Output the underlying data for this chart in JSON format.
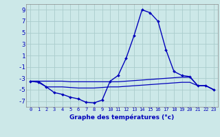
{
  "title": "Graphe des températures (°c)",
  "background_color": "#cce8e8",
  "grid_color": "#aacccc",
  "line_color": "#0000bb",
  "x_labels": [
    "0",
    "1",
    "2",
    "3",
    "4",
    "5",
    "6",
    "7",
    "8",
    "9",
    "10",
    "11",
    "12",
    "13",
    "14",
    "15",
    "16",
    "17",
    "18",
    "19",
    "20",
    "21",
    "22",
    "23"
  ],
  "ylim": [
    -8,
    10
  ],
  "yticks": [
    -7,
    -5,
    -3,
    -1,
    1,
    3,
    5,
    7,
    9
  ],
  "xlim": [
    -0.5,
    23.5
  ],
  "line1_x": [
    0,
    1,
    2,
    3,
    4,
    5,
    6,
    7,
    8,
    9,
    10,
    11,
    12,
    13,
    14,
    15,
    16,
    17,
    18,
    19,
    20,
    21,
    22,
    23
  ],
  "line1_y": [
    -3.5,
    -3.7,
    -4.5,
    -5.5,
    -5.8,
    -6.3,
    -6.6,
    -7.2,
    -7.3,
    -6.8,
    -3.5,
    -2.5,
    0.5,
    4.5,
    9.0,
    8.5,
    7.0,
    2.0,
    -1.8,
    -2.5,
    -2.7,
    -4.3,
    -4.3,
    -5.0
  ],
  "line2_x": [
    0,
    1,
    2,
    3,
    4,
    5,
    6,
    7,
    8,
    9,
    10,
    11,
    12,
    13,
    14,
    15,
    16,
    17,
    18,
    19,
    20,
    21,
    22,
    23
  ],
  "line2_y": [
    -3.5,
    -3.5,
    -3.5,
    -3.5,
    -3.5,
    -3.6,
    -3.6,
    -3.6,
    -3.6,
    -3.6,
    -3.6,
    -3.6,
    -3.5,
    -3.4,
    -3.3,
    -3.2,
    -3.1,
    -3.0,
    -2.9,
    -2.8,
    -2.8,
    -4.3,
    -4.3,
    -5.0
  ],
  "line3_x": [
    0,
    1,
    2,
    3,
    4,
    5,
    6,
    7,
    8,
    9,
    10,
    11,
    12,
    13,
    14,
    15,
    16,
    17,
    18,
    19,
    20,
    21,
    22,
    23
  ],
  "line3_y": [
    -3.5,
    -3.5,
    -4.5,
    -4.5,
    -4.5,
    -4.6,
    -4.7,
    -4.7,
    -4.7,
    -4.6,
    -4.5,
    -4.5,
    -4.4,
    -4.3,
    -4.2,
    -4.1,
    -4.0,
    -3.9,
    -3.8,
    -3.7,
    -3.7,
    -4.3,
    -4.3,
    -5.0
  ]
}
